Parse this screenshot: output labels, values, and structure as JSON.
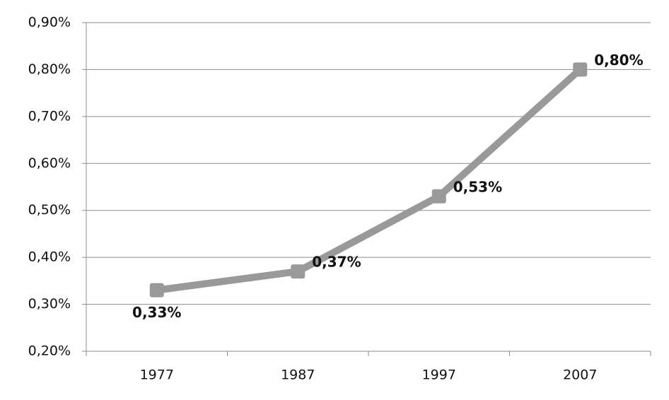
{
  "chart_data": {
    "type": "line",
    "categories": [
      "1977",
      "1987",
      "1997",
      "2007"
    ],
    "values": [
      0.33,
      0.37,
      0.53,
      0.8
    ],
    "value_labels": [
      "0,33%",
      "0,37%",
      "0,53%",
      "0,80%"
    ],
    "color": "#999999",
    "ylim": [
      0.2,
      0.9
    ],
    "yticks": [
      {
        "value": 0.2,
        "label": "0,20%"
      },
      {
        "value": 0.3,
        "label": "0,30%"
      },
      {
        "value": 0.4,
        "label": "0,40%"
      },
      {
        "value": 0.5,
        "label": "0,50%"
      },
      {
        "value": 0.6,
        "label": "0,60%"
      },
      {
        "value": 0.7,
        "label": "0,70%"
      },
      {
        "value": 0.8,
        "label": "0,80%"
      },
      {
        "value": 0.9,
        "label": "0,90%"
      }
    ],
    "grid": true
  }
}
